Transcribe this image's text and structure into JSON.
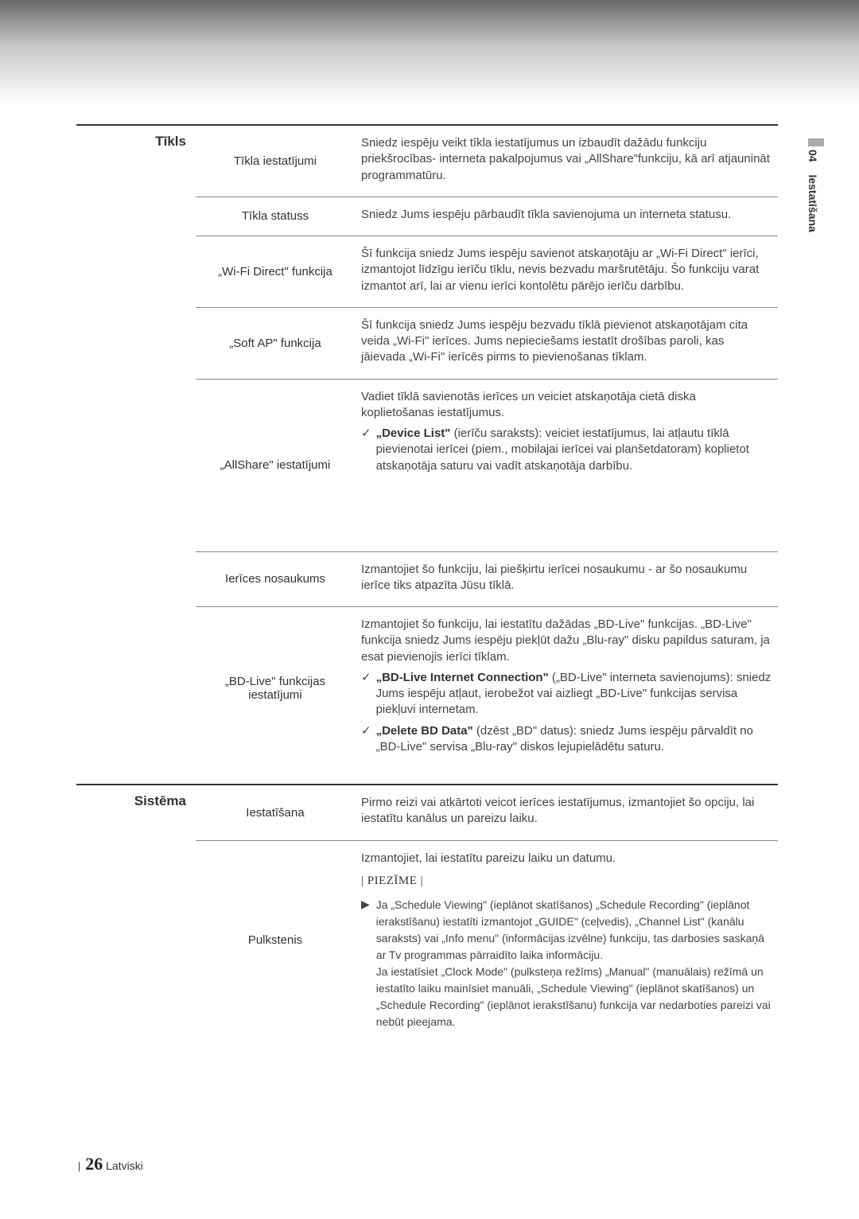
{
  "colors": {
    "text": "#4a4a4a",
    "heading": "#333333",
    "border_heavy": "#333333",
    "border_light": "#888888",
    "gradient_top": "#6a6a6a",
    "gradient_mid": "#c8c8c8",
    "background": "#ffffff"
  },
  "typography": {
    "body_family": "Arial",
    "body_size": 15,
    "label_size": 17,
    "footer_page_family": "Times New Roman",
    "footer_page_size": 22
  },
  "sideTab": {
    "num": "04",
    "txt": "Iestatīšana"
  },
  "footer": {
    "page": "26",
    "lang": "Latviski"
  },
  "sections": [
    {
      "label": "Tīkls",
      "items": [
        {
          "name": "Tīkla iestatījumi",
          "desc": "Sniedz iespēju veikt tīkla iestatījumus un izbaudīt dažādu funkciju priekšrocības- interneta pakalpojumus vai „AllShare\"funkciju, kā arī atjaunināt programmatūru."
        },
        {
          "name": "Tīkla statuss",
          "desc": "Sniedz Jums iespēju pārbaudīt tīkla savienojuma un interneta statusu."
        },
        {
          "name": "„Wi-Fi Direct\" funkcija",
          "desc": "Šī funkcija sniedz Jums iespēju savienot atskaņotāju ar „Wi-Fi Direct\" ierīci, izmantojot līdzīgu ierīču tīklu, nevis bezvadu maršrutētāju. Šo funkciju varat izmantot arī, lai ar vienu ierīci kontolētu pārējo ierīču darbību."
        },
        {
          "name": "„Soft AP\" funkcija",
          "desc": "Šī funkcija sniedz Jums iespēju bezvadu tīklā pievienot atskaņotājam cita veida „Wi-Fi\" ierīces. Jums nepieciešams iestatīt drošības paroli, kas jāievada „Wi-Fi\" ierīcēs pirms to pievienošanas tīklam."
        },
        {
          "name": "„AllShare\" iestatījumi",
          "tall": true,
          "desc": "Vadiet tīklā savienotās ierīces un veiciet atskaņotāja cietā diska koplietošanas iestatījumus.",
          "subs": [
            {
              "bold": "„Device List\"",
              "rest": " (ierīču saraksts): veiciet iestatījumus, lai atļautu tīklā pievienotai ierīcei (piem., mobilajai ierīcei vai planšetdatoram) koplietot atskaņotāja saturu vai vadīt atskaņotāja darbību."
            }
          ]
        },
        {
          "name": "Ierīces nosaukums",
          "desc": "Izmantojiet šo funkciju, lai piešķirtu ierīcei nosaukumu - ar šo nosaukumu ierīce tiks atpazīta Jūsu tīklā."
        },
        {
          "name": "„BD-Live\" funkcijas iestatījumi",
          "desc": "Izmantojiet šo funkciju, lai iestatītu dažādas „BD-Live\" funkcijas. „BD-Live\" funkcija sniedz Jums iespēju piekļūt dažu „Blu-ray\" disku papildus saturam, ja esat pievienojis ierīci tīklam.",
          "subs": [
            {
              "bold": "„BD-Live Internet Connection\"",
              "rest": " („BD-Live\" interneta savienojums): sniedz Jums iespēju atļaut, ierobežot vai aizliegt „BD-Live\" funkcijas servisa piekļuvi internetam."
            },
            {
              "bold": "„Delete BD Data\"",
              "rest": " (dzēst „BD\" datus): sniedz Jums iespēju pārvaldīt no „BD-Live\" servisa „Blu-ray\" diskos lejupielādētu saturu."
            }
          ]
        }
      ]
    },
    {
      "label": "Sistēma",
      "items": [
        {
          "name": "Iestatīšana",
          "desc": "Pirmo reizi vai atkārtoti veicot ierīces iestatījumus, izmantojiet šo opciju, lai iestatītu kanālus un pareizu laiku."
        },
        {
          "name": "Pulkstenis",
          "tall": true,
          "desc": "Izmantojiet, lai iestatītu pareizu laiku un datumu.",
          "noteTitle": "| PIEZĪME |",
          "note": "Ja „Schedule Viewing\" (ieplānot skatīšanos) „Schedule Recording\" (ieplānot ierakstīšanu) iestatīti izmantojot „GUIDE\" (ceļvedis), „Channel List\" (kanālu saraksts) vai „Info menu\" (informācijas izvēlne) funkciju, tas darbosies saskaņā ar Tv programmas pārraidīto laika informāciju.\nJa iestatīsiet „Clock Mode\" (pulksteņa režīms) „Manual\" (manuālais) režīmā un iestatīto laiku mainīsiet manuāli, „Schedule Viewing\" (ieplānot skatīšanos) un „Schedule Recording\" (ieplānot ierakstīšanu) funkcija var nedarboties pareizi vai nebūt pieejama."
        }
      ]
    }
  ]
}
